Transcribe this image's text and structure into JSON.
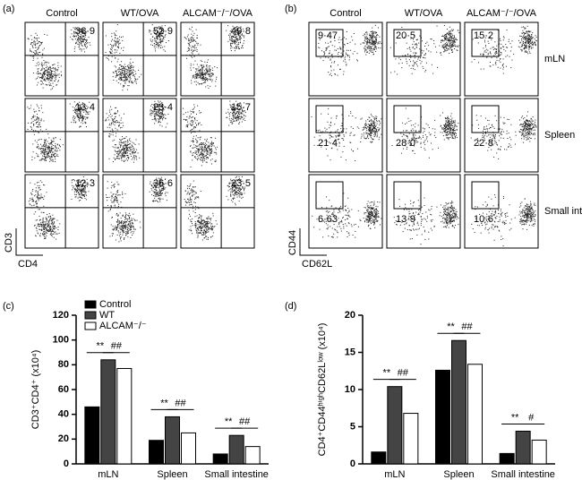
{
  "panels": [
    {
      "label": "(a)",
      "columns": [
        "Control",
        "WT/OVA",
        "ALCAM⁻/⁻/OVA"
      ],
      "values": [
        [
          "36·9",
          "52·9",
          "49·8"
        ],
        [
          "13·4",
          "23·4",
          "15·7"
        ],
        [
          "12·3",
          "36·6",
          "23·5"
        ]
      ],
      "y_axis": "CD3",
      "x_axis": "CD4"
    },
    {
      "label": "(b)",
      "columns": [
        "Control",
        "WT/OVA",
        "ALCAM⁻/⁻/OVA"
      ],
      "row_labels": [
        "mLN",
        "Spleen",
        "Small intestine"
      ],
      "values": [
        [
          "9·47",
          "20·5",
          "15·2"
        ],
        [
          "21·4",
          "28·0",
          "22·8"
        ],
        [
          "6·63",
          "13·9",
          "10·6"
        ]
      ],
      "y_axis": "CD44",
      "x_axis": "CD62L"
    }
  ],
  "chart_data": [
    {
      "type": "bar",
      "panel": "(c)",
      "ylabel": "CD3⁺CD4⁺ (x10⁴)",
      "categories": [
        "mLN",
        "Spleen",
        "Small intestine"
      ],
      "series": [
        {
          "name": "Control",
          "color": "#000000",
          "values": [
            46,
            19,
            8
          ]
        },
        {
          "name": "WT",
          "color": "#444444",
          "values": [
            84,
            38,
            23
          ]
        },
        {
          "name": "ALCAM⁻/⁻",
          "color": "#ffffff",
          "values": [
            77,
            25,
            14
          ]
        }
      ],
      "annotations": [
        [
          "**",
          "##"
        ],
        [
          "**",
          "##"
        ],
        [
          "**",
          "##"
        ]
      ],
      "ylim": [
        0,
        120
      ],
      "yticks": [
        0,
        20,
        40,
        60,
        80,
        100,
        120
      ],
      "legend": "top-left"
    },
    {
      "type": "bar",
      "panel": "(d)",
      "ylabel": "CD4⁺CD44ʰⁱᵍʰCD62Lˡᵒʷ (x10⁴)",
      "categories": [
        "mLN",
        "Spleen",
        "Small intestine"
      ],
      "series": [
        {
          "color": "#000000",
          "values": [
            1.6,
            12.6,
            1.4
          ]
        },
        {
          "color": "#444444",
          "values": [
            10.4,
            16.6,
            4.4
          ]
        },
        {
          "color": "#ffffff",
          "values": [
            6.8,
            13.4,
            3.2
          ]
        }
      ],
      "annotations": [
        [
          "**",
          "##"
        ],
        [
          "**",
          "##"
        ],
        [
          "**",
          "#"
        ]
      ],
      "ylim": [
        0,
        20
      ],
      "yticks": [
        0,
        5,
        10,
        15,
        20
      ]
    }
  ]
}
